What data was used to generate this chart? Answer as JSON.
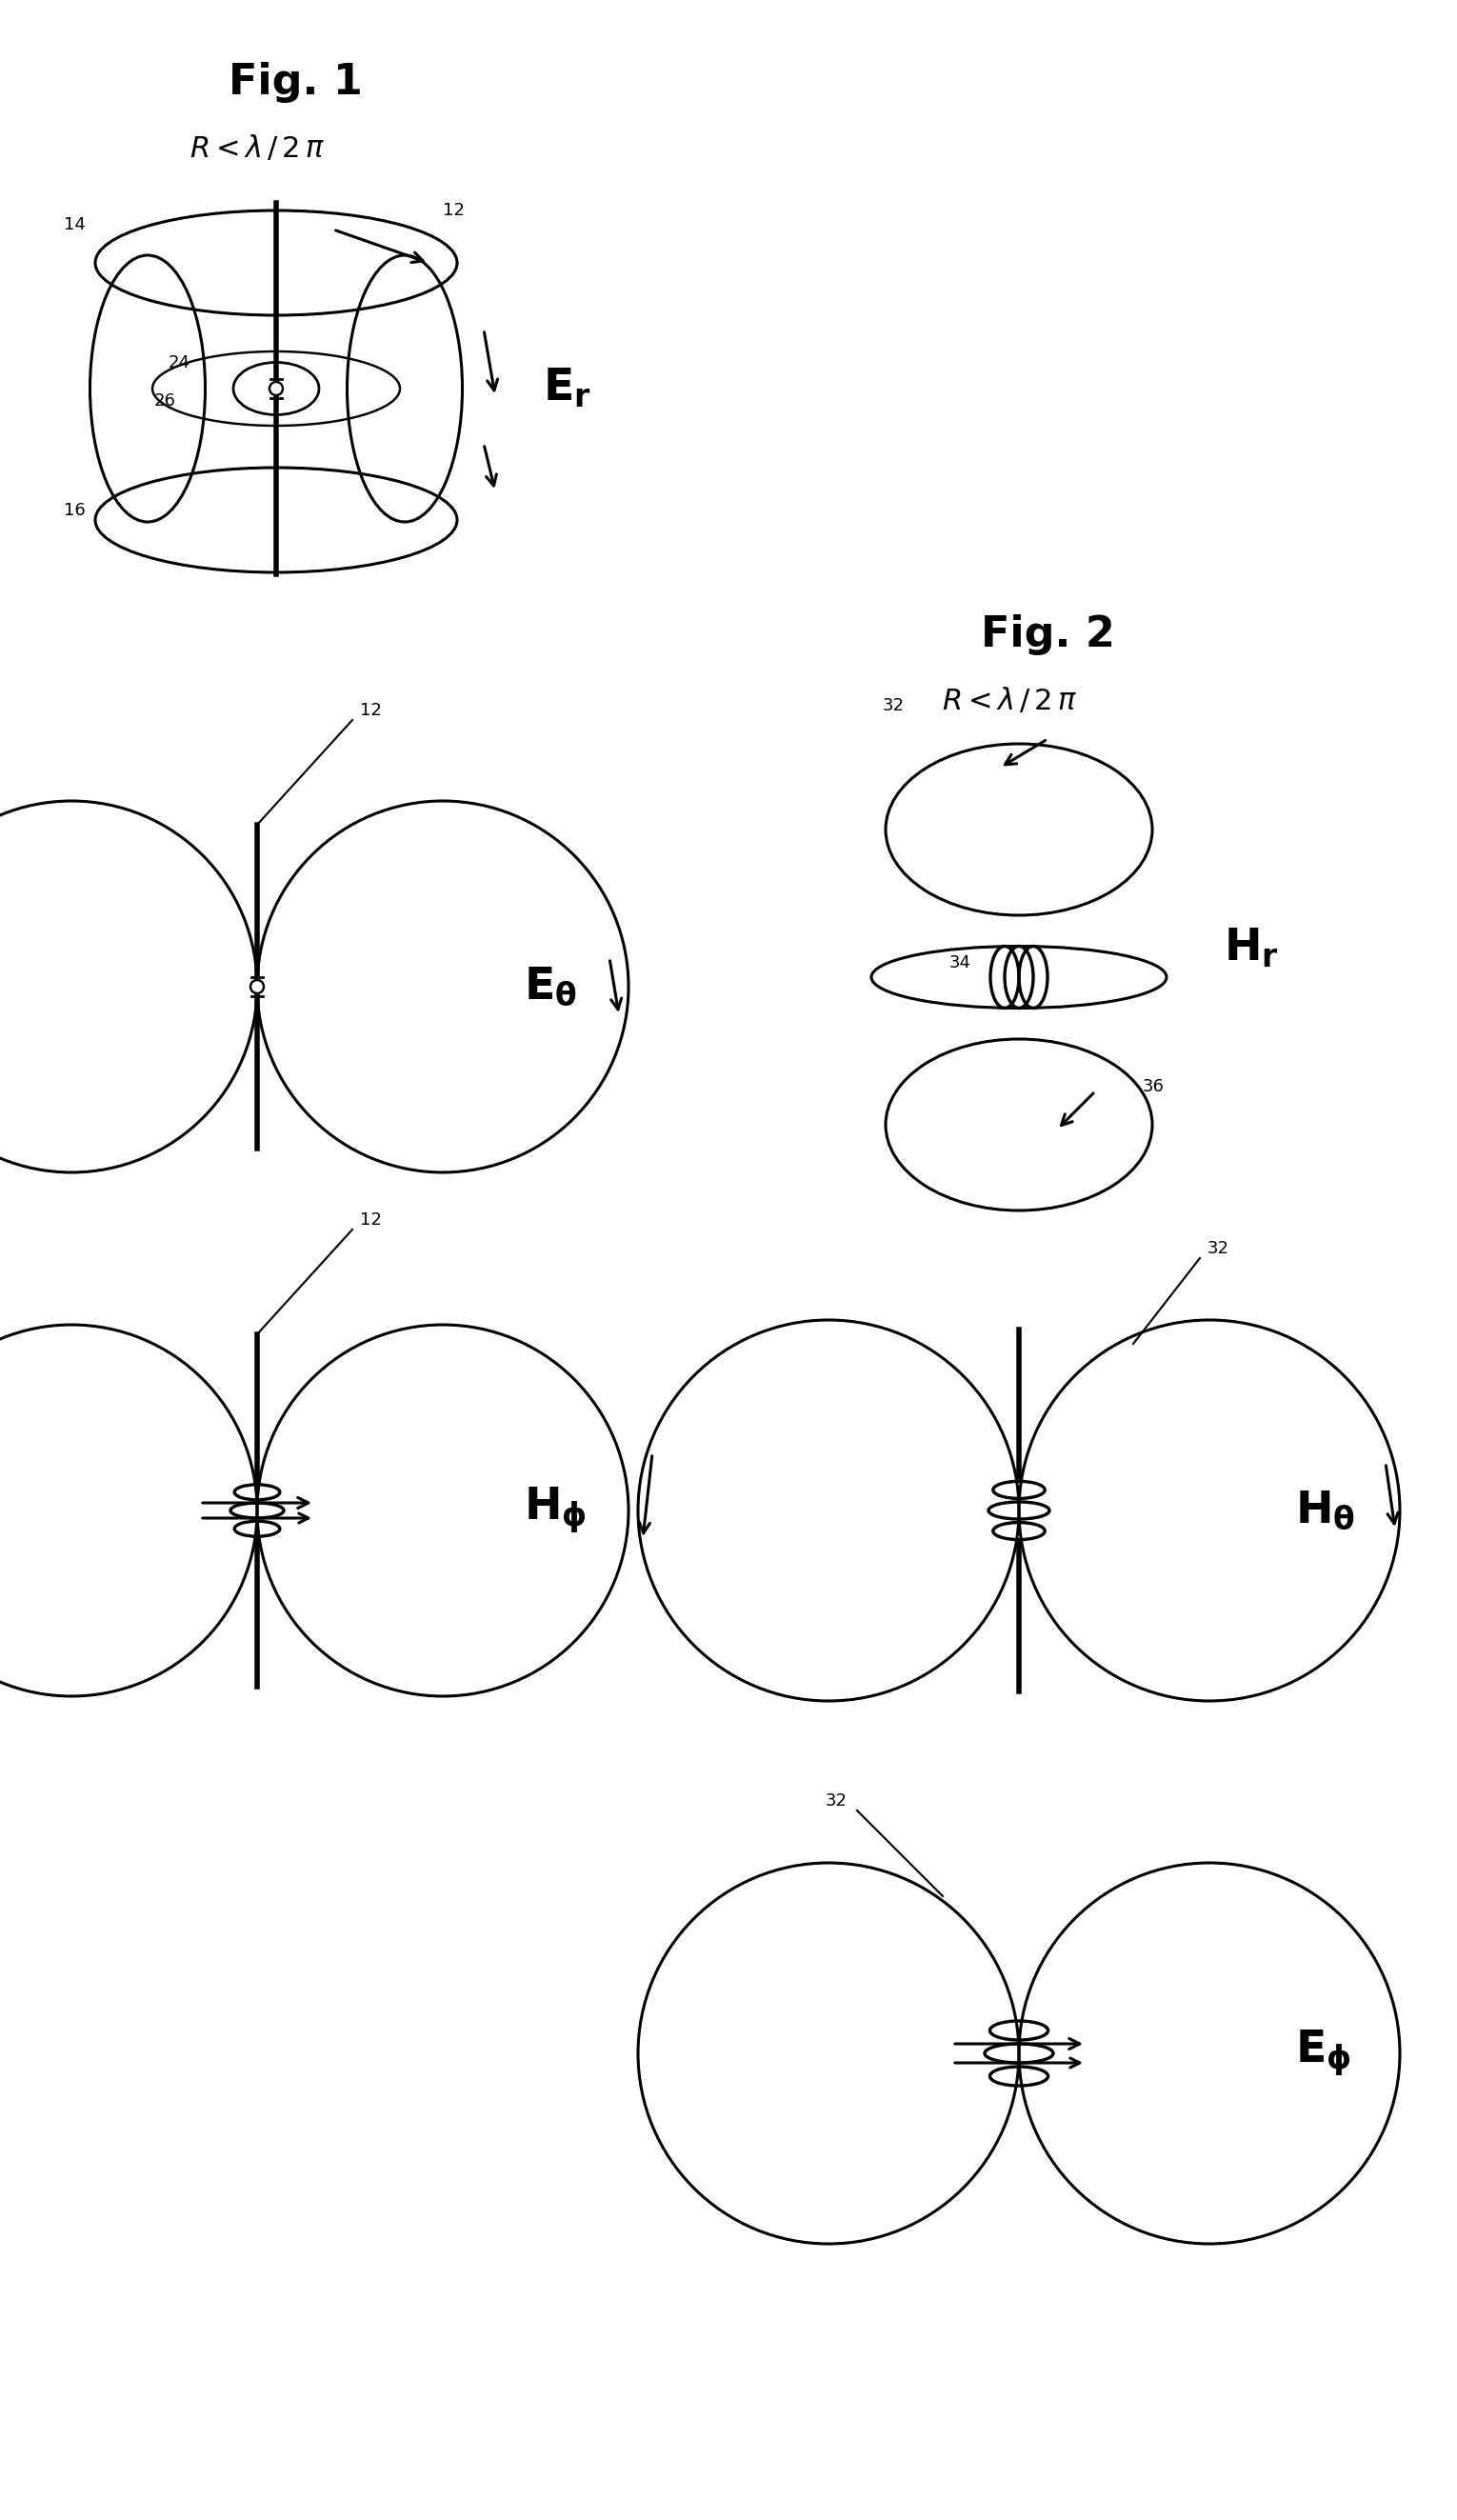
{
  "fig_width": 15.3,
  "fig_height": 26.46,
  "bg_color": "#ffffff",
  "line_color": "#000000",
  "line_width": 2.2,
  "fig1_title": "Fig. 1",
  "fig2_title": "Fig. 2",
  "condition": "R < λ / 2 π"
}
